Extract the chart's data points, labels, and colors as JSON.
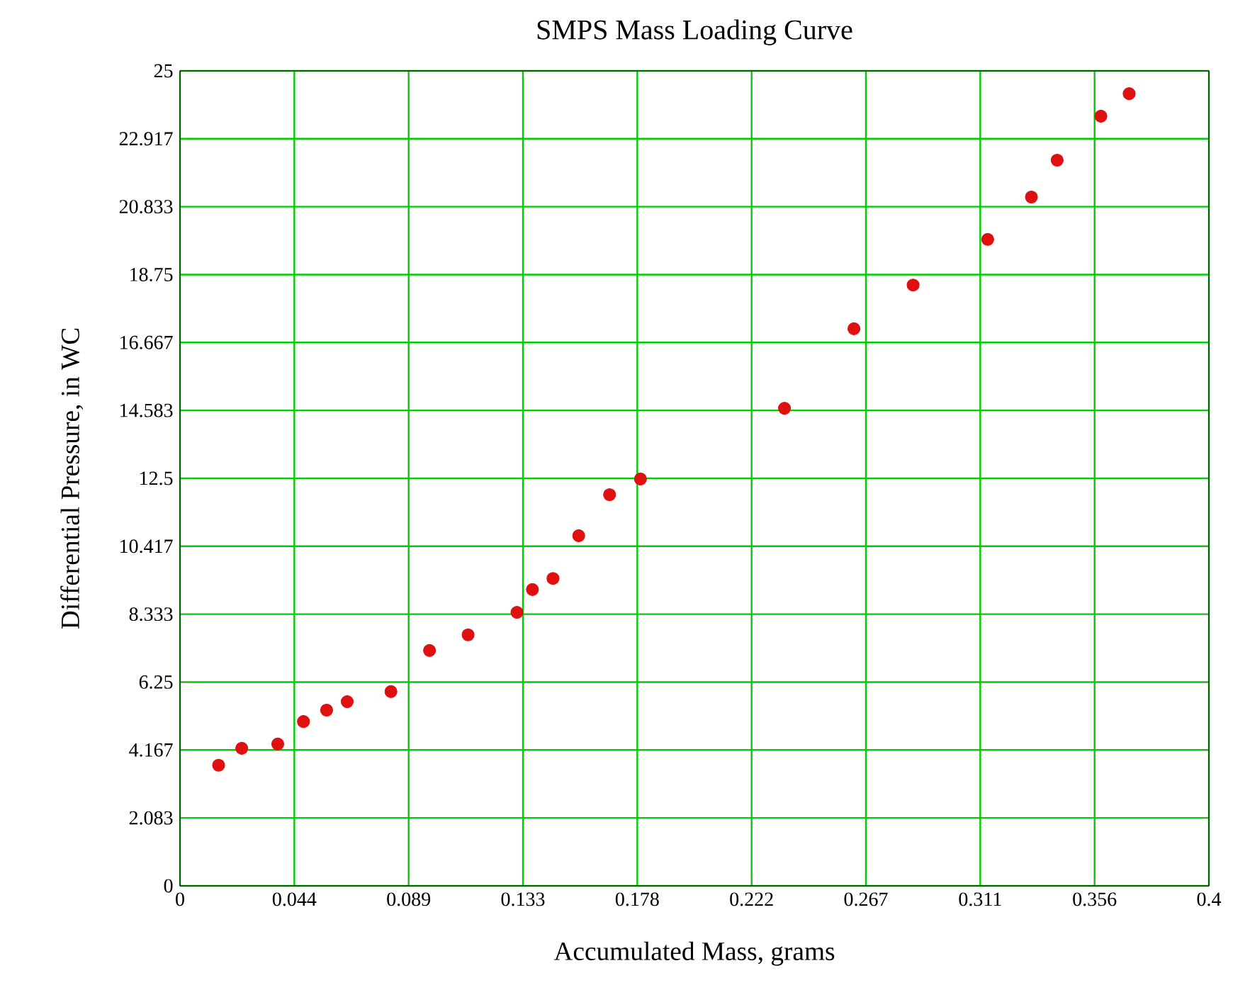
{
  "chart_data": {
    "type": "scatter",
    "title": "SMPS Mass Loading Curve",
    "xlabel": "Accumulated Mass, grams",
    "ylabel": "Differential Pressure, in WC",
    "x": [
      0.015,
      0.024,
      0.038,
      0.048,
      0.057,
      0.065,
      0.082,
      0.097,
      0.112,
      0.131,
      0.137,
      0.145,
      0.155,
      0.167,
      0.179,
      0.235,
      0.262,
      0.285,
      0.314,
      0.331,
      0.341,
      0.358,
      0.369
    ],
    "series": [
      {
        "color": "#e01010",
        "values": [
          3.7,
          4.22,
          4.35,
          5.04,
          5.39,
          5.65,
          5.96,
          7.22,
          7.7,
          8.39,
          9.09,
          9.43,
          10.74,
          12.0,
          12.48,
          14.65,
          17.09,
          18.43,
          19.83,
          21.13,
          22.26,
          23.61,
          24.3
        ]
      }
    ],
    "xlim": [
      0,
      0.4
    ],
    "ylim": [
      0,
      25
    ],
    "xticks": [
      0,
      {
        "value": 0.044444,
        "label": "0.044"
      },
      {
        "value": 0.088889,
        "label": "0.089"
      },
      {
        "value": 0.133333,
        "label": "0.133"
      },
      {
        "value": 0.177778,
        "label": "0.178"
      },
      {
        "value": 0.222222,
        "label": "0.222"
      },
      {
        "value": 0.266667,
        "label": "0.267"
      },
      {
        "value": 0.311111,
        "label": "0.311"
      },
      {
        "value": 0.355556,
        "label": "0.356"
      },
      0.4
    ],
    "yticks": [
      0,
      {
        "value": 2.083333,
        "label": "2.083"
      },
      {
        "value": 4.166667,
        "label": "4.167"
      },
      6.25,
      {
        "value": 8.333333,
        "label": "8.333"
      },
      {
        "value": 10.416667,
        "label": "10.417"
      },
      12.5,
      {
        "value": 14.583333,
        "label": "14.583"
      },
      {
        "value": 16.666667,
        "label": "16.667"
      },
      18.75,
      {
        "value": 20.833333,
        "label": "20.833"
      },
      {
        "value": 22.916667,
        "label": "22.917"
      },
      25
    ],
    "grid": true,
    "marker": "circle"
  }
}
